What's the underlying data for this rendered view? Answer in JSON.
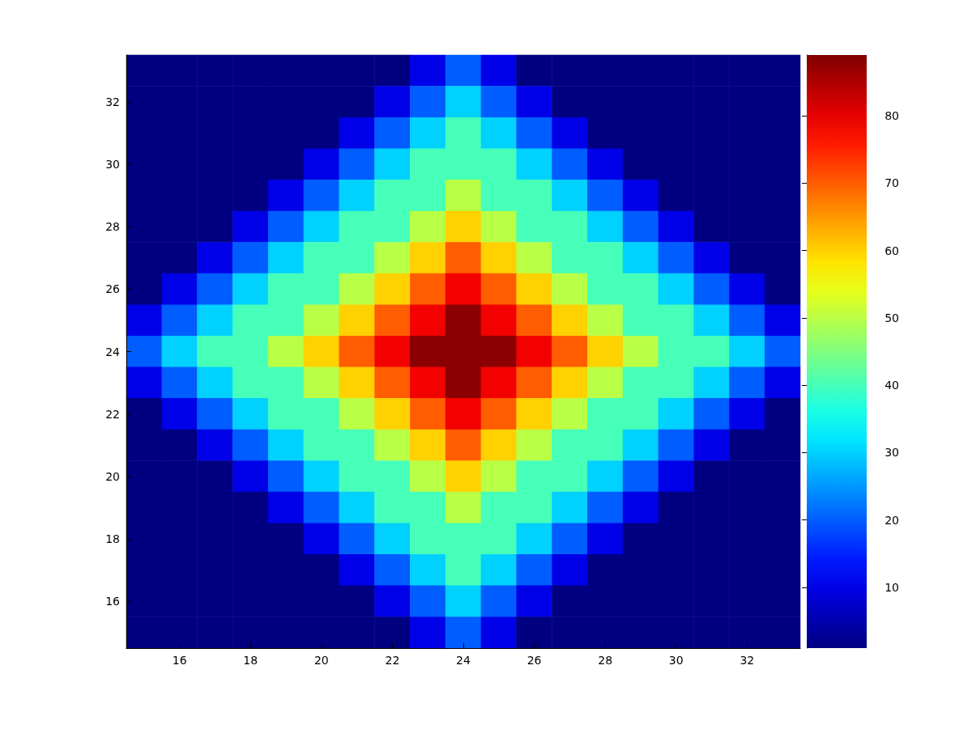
{
  "chart_data": {
    "type": "heatmap",
    "categories": [
      null,
      "16",
      null,
      "18",
      null,
      "20",
      null,
      "22",
      null,
      "24",
      null,
      "26",
      null,
      "28",
      null,
      "30",
      null,
      "32",
      null
    ],
    "y_categories": [
      null,
      "32",
      null,
      "30",
      null,
      "28",
      null,
      "26",
      null,
      "24",
      null,
      "22",
      null,
      "20",
      null,
      "18",
      null,
      "16",
      null
    ],
    "clim": [
      1,
      89
    ],
    "cticks": [
      10,
      20,
      30,
      40,
      50,
      60,
      70,
      80
    ],
    "cells": [
      [
        1,
        1,
        1,
        1,
        1,
        1,
        1,
        1,
        10,
        20,
        10,
        1,
        1,
        1,
        1,
        1,
        1,
        1,
        1
      ],
      [
        1,
        1,
        1,
        1,
        1,
        1,
        1,
        10,
        20,
        30,
        20,
        10,
        1,
        1,
        1,
        1,
        1,
        1,
        1
      ],
      [
        1,
        1,
        1,
        1,
        1,
        1,
        10,
        20,
        30,
        40,
        30,
        20,
        10,
        1,
        1,
        1,
        1,
        1,
        1
      ],
      [
        1,
        1,
        1,
        1,
        1,
        10,
        20,
        30,
        40,
        40,
        40,
        30,
        20,
        10,
        1,
        1,
        1,
        1,
        1
      ],
      [
        1,
        1,
        1,
        1,
        10,
        20,
        30,
        40,
        40,
        50,
        40,
        40,
        30,
        20,
        10,
        1,
        1,
        1,
        1
      ],
      [
        1,
        1,
        1,
        10,
        20,
        30,
        40,
        40,
        50,
        60,
        50,
        40,
        40,
        30,
        20,
        10,
        1,
        1,
        1
      ],
      [
        1,
        1,
        10,
        20,
        30,
        40,
        40,
        50,
        60,
        70,
        60,
        50,
        40,
        40,
        30,
        20,
        10,
        1,
        1
      ],
      [
        1,
        10,
        20,
        30,
        40,
        40,
        50,
        60,
        70,
        79,
        70,
        60,
        50,
        40,
        40,
        30,
        20,
        10,
        1
      ],
      [
        10,
        20,
        30,
        40,
        40,
        50,
        60,
        70,
        79,
        88,
        79,
        70,
        60,
        50,
        40,
        40,
        30,
        20,
        10
      ],
      [
        20,
        30,
        40,
        40,
        50,
        60,
        70,
        79,
        88,
        88,
        88,
        79,
        70,
        60,
        50,
        40,
        40,
        30,
        20
      ],
      [
        10,
        20,
        30,
        40,
        40,
        50,
        60,
        70,
        79,
        88,
        79,
        70,
        60,
        50,
        40,
        40,
        30,
        20,
        10
      ],
      [
        1,
        10,
        20,
        30,
        40,
        40,
        50,
        60,
        70,
        79,
        70,
        60,
        50,
        40,
        40,
        30,
        20,
        10,
        1
      ],
      [
        1,
        1,
        10,
        20,
        30,
        40,
        40,
        50,
        60,
        70,
        60,
        50,
        40,
        40,
        30,
        20,
        10,
        1,
        1
      ],
      [
        1,
        1,
        1,
        10,
        20,
        30,
        40,
        40,
        50,
        60,
        50,
        40,
        40,
        30,
        20,
        10,
        1,
        1,
        1
      ],
      [
        1,
        1,
        1,
        1,
        10,
        20,
        30,
        40,
        40,
        50,
        40,
        40,
        30,
        20,
        10,
        1,
        1,
        1,
        1
      ],
      [
        1,
        1,
        1,
        1,
        1,
        10,
        20,
        30,
        40,
        40,
        40,
        30,
        20,
        10,
        1,
        1,
        1,
        1,
        1
      ],
      [
        1,
        1,
        1,
        1,
        1,
        1,
        10,
        20,
        30,
        40,
        30,
        20,
        10,
        1,
        1,
        1,
        1,
        1,
        1
      ],
      [
        1,
        1,
        1,
        1,
        1,
        1,
        1,
        10,
        20,
        30,
        20,
        10,
        1,
        1,
        1,
        1,
        1,
        1,
        1
      ],
      [
        1,
        1,
        1,
        1,
        1,
        1,
        1,
        1,
        10,
        20,
        10,
        1,
        1,
        1,
        1,
        1,
        1,
        1,
        1
      ]
    ]
  }
}
